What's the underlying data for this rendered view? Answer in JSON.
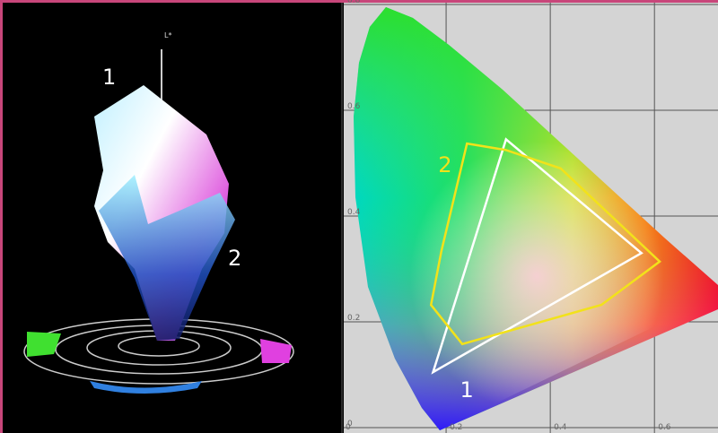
{
  "volume": {
    "axis_label": "L*",
    "labels": [
      "1",
      "2"
    ]
  },
  "chart_data": {
    "type": "polygon",
    "xlim": [
      0,
      0.722
    ],
    "ylim": [
      0,
      0.8
    ],
    "xticks": [
      0,
      0.2,
      0.4,
      0.6
    ],
    "yticks": [
      0,
      0.2,
      0.4,
      0.6,
      0.8
    ],
    "grid": true,
    "series": [
      {
        "name": "1",
        "color": "#ffffff",
        "x": [
          0.175,
          0.315,
          0.575
        ],
        "values": [
          0.105,
          0.545,
          0.33
        ]
      },
      {
        "name": "2",
        "color": "#f2e21a",
        "x": [
          0.24,
          0.314,
          0.42,
          0.61,
          0.498,
          0.231,
          0.171,
          0.191
        ],
        "values": [
          0.537,
          0.525,
          0.49,
          0.314,
          0.232,
          0.158,
          0.232,
          0.334
        ]
      }
    ]
  }
}
